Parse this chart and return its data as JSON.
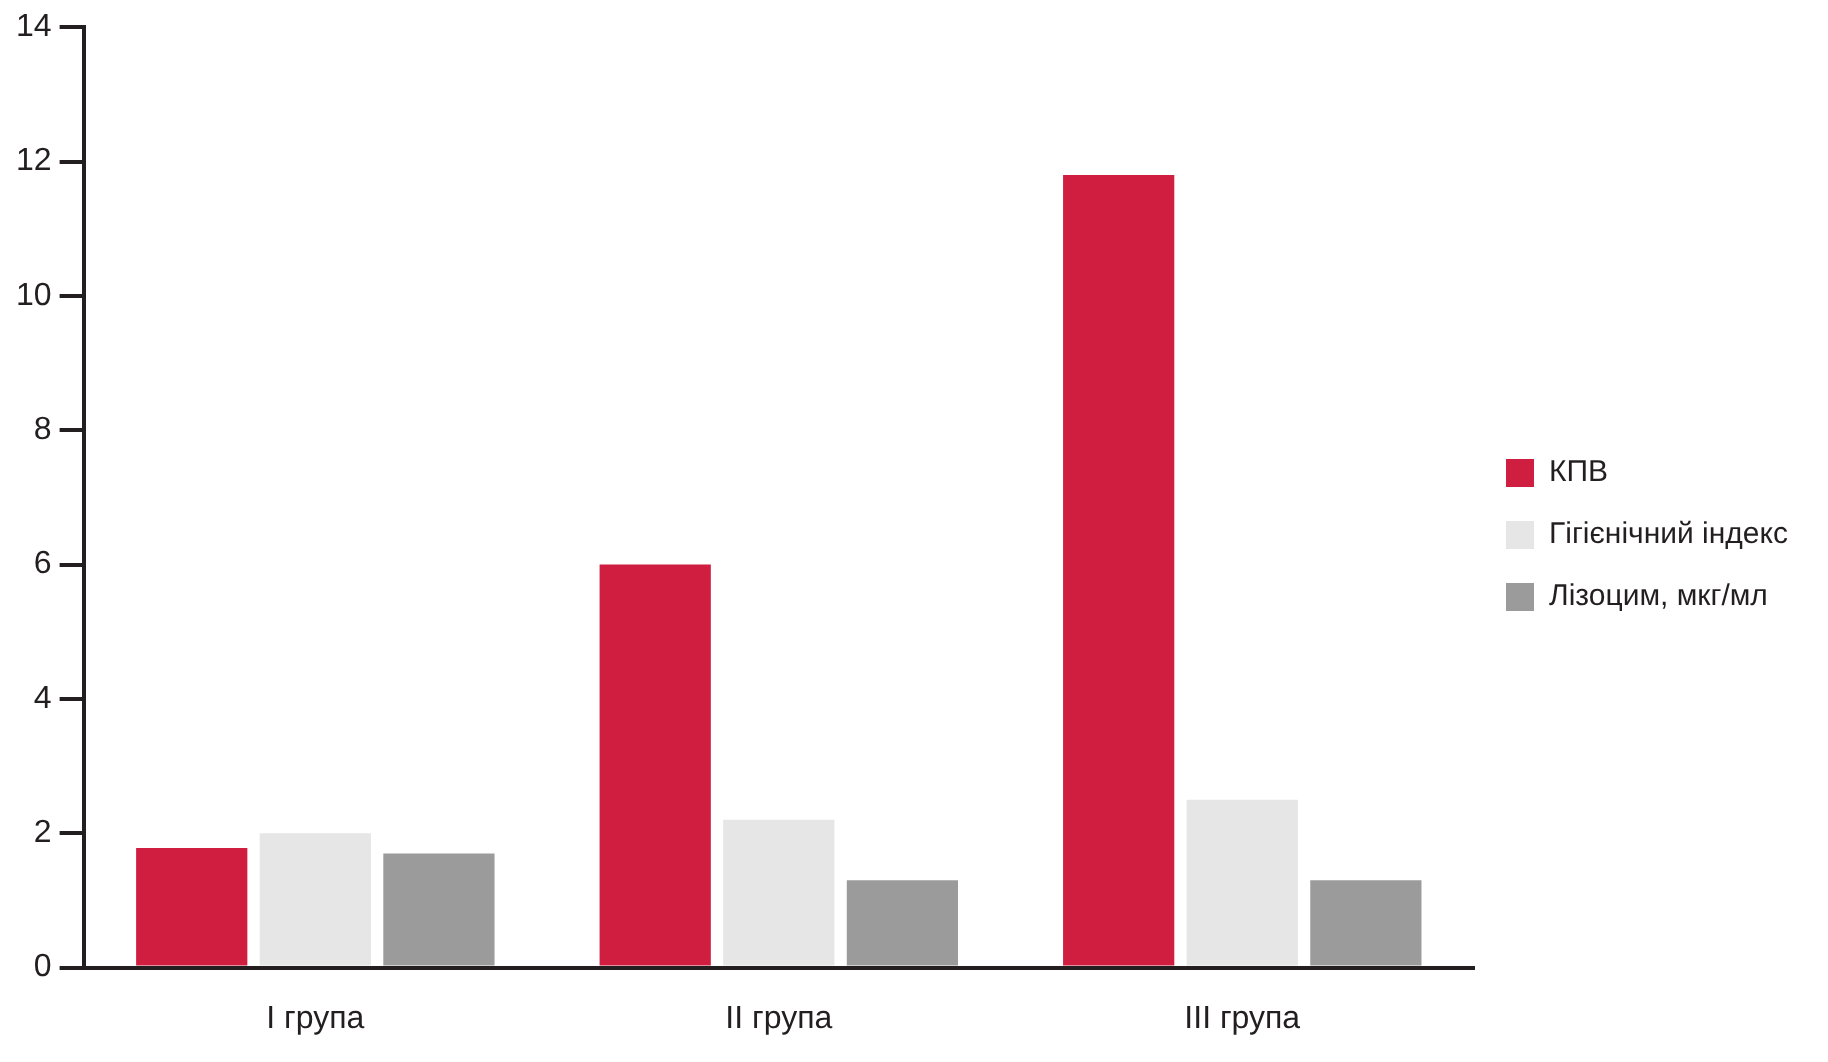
{
  "chart_data": {
    "type": "bar",
    "categories": [
      "I група",
      "II група",
      "III група"
    ],
    "series": [
      {
        "name": "КПВ",
        "color": "#cf1e3f",
        "values": [
          1.78,
          6.0,
          11.8
        ]
      },
      {
        "name": "Гігієнічний індекс",
        "color": "#e6e6e6",
        "values": [
          2.0,
          2.2,
          2.5
        ]
      },
      {
        "name": "Лізоцим, мкг/мл",
        "color": "#9b9b9b",
        "values": [
          1.7,
          1.3,
          1.3
        ]
      }
    ],
    "ylim": [
      0,
      14
    ],
    "yticks": [
      0,
      2,
      4,
      6,
      8,
      10,
      12,
      14
    ],
    "grid": false,
    "legend": "right"
  }
}
